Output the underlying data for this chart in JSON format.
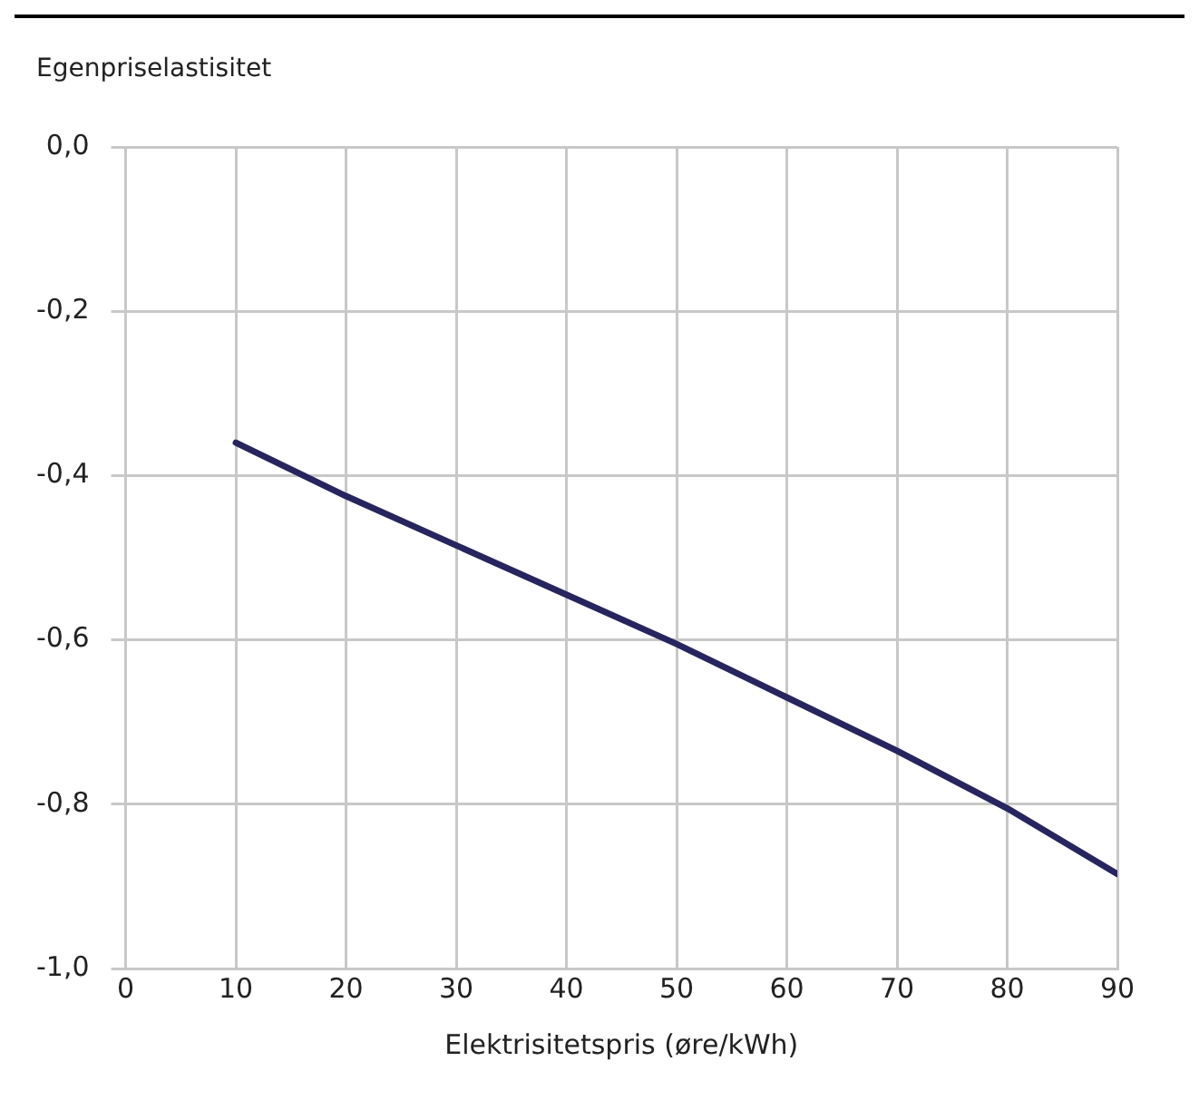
{
  "chart_data": {
    "type": "line",
    "xlabel": "Elektrisitetspris (øre/kWh)",
    "ylabel": "Egenpriselastisitet",
    "x": [
      10,
      20,
      30,
      40,
      50,
      60,
      70,
      80,
      90
    ],
    "series": [
      {
        "color": "#27255f",
        "values": [
          -0.36,
          -0.425,
          -0.485,
          -0.545,
          -0.605,
          -0.67,
          -0.735,
          -0.805,
          -0.885
        ]
      }
    ],
    "xlim": [
      0,
      90
    ],
    "xticks": [
      0,
      10,
      20,
      30,
      40,
      50,
      60,
      70,
      80,
      90
    ],
    "ylim": [
      -1,
      0
    ],
    "yticks": [
      {
        "value": -1,
        "label": "-1,0"
      },
      {
        "value": -0.8,
        "label": "-0,8"
      },
      {
        "value": -0.6,
        "label": "-0,6"
      },
      {
        "value": -0.4,
        "label": "-0,4"
      },
      {
        "value": -0.2,
        "label": "-0,2"
      },
      {
        "value": 0,
        "label": "0,0"
      }
    ],
    "grid": true,
    "marker": "none",
    "line_style": "solid"
  }
}
